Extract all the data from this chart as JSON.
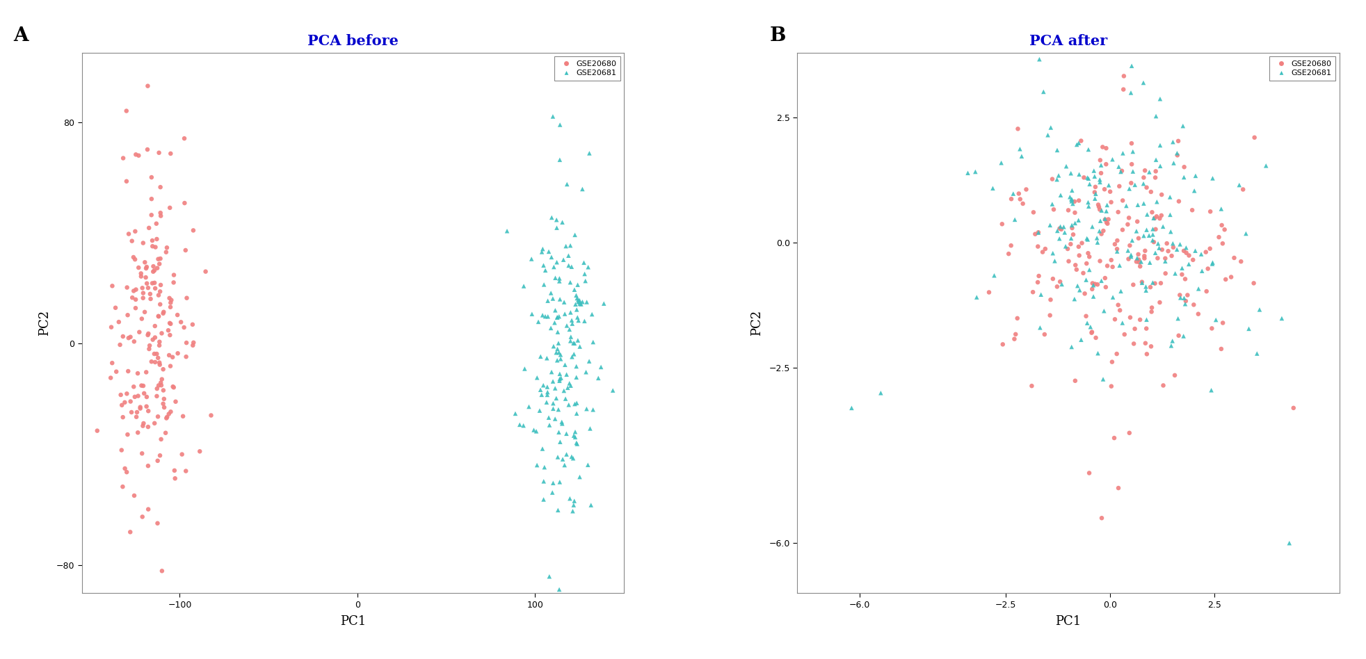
{
  "title_A": "PCA before",
  "title_B": "PCA after",
  "label_A": "A",
  "label_B": "B",
  "xlabel": "PC1",
  "ylabel": "PC2",
  "legend_labels": [
    "GSE20680",
    "GSE20681"
  ],
  "color_gse0": "#F08080",
  "color_gse1": "#3DBFBF",
  "title_color": "#0000CC",
  "title_fontsize": 15,
  "axis_label_fontsize": 13,
  "tick_fontsize": 9,
  "panel_label_fontsize": 20,
  "seed_before_gse0": 42,
  "seed_before_gse1": 99,
  "seed_after_gse0": 7,
  "seed_after_gse1": 13,
  "n_gse0": 200,
  "n_gse1": 180,
  "before_gse0_xcenter": -115,
  "before_gse0_xspread": 12,
  "before_gse0_ycenter": 0,
  "before_gse0_yspread": 32,
  "before_gse1_xcenter": 115,
  "before_gse1_xspread": 10,
  "before_gse1_ycenter": -5,
  "before_gse1_yspread": 28,
  "after_gse0_xcenter": 0.3,
  "after_gse0_xspread": 1.4,
  "after_gse0_ycenter": -0.1,
  "after_gse0_yspread": 1.2,
  "after_gse1_xcenter": 0.3,
  "after_gse1_xspread": 1.6,
  "after_gse1_ycenter": 0.3,
  "after_gse1_yspread": 1.3,
  "before_xlim": [
    -155,
    150
  ],
  "before_ylim": [
    -90,
    105
  ],
  "after_xlim": [
    -7.5,
    5.5
  ],
  "after_ylim": [
    -7.0,
    3.8
  ],
  "before_xticks": [
    -100,
    0,
    100
  ],
  "before_yticks": [
    -80,
    0,
    80
  ],
  "after_xticks": [
    -6.0,
    -2.5,
    0.0,
    2.5
  ],
  "after_yticks": [
    -6.0,
    -2.5,
    0.0,
    2.5
  ],
  "marker_size": 22,
  "figwidth": 19.65,
  "figheight": 9.48
}
